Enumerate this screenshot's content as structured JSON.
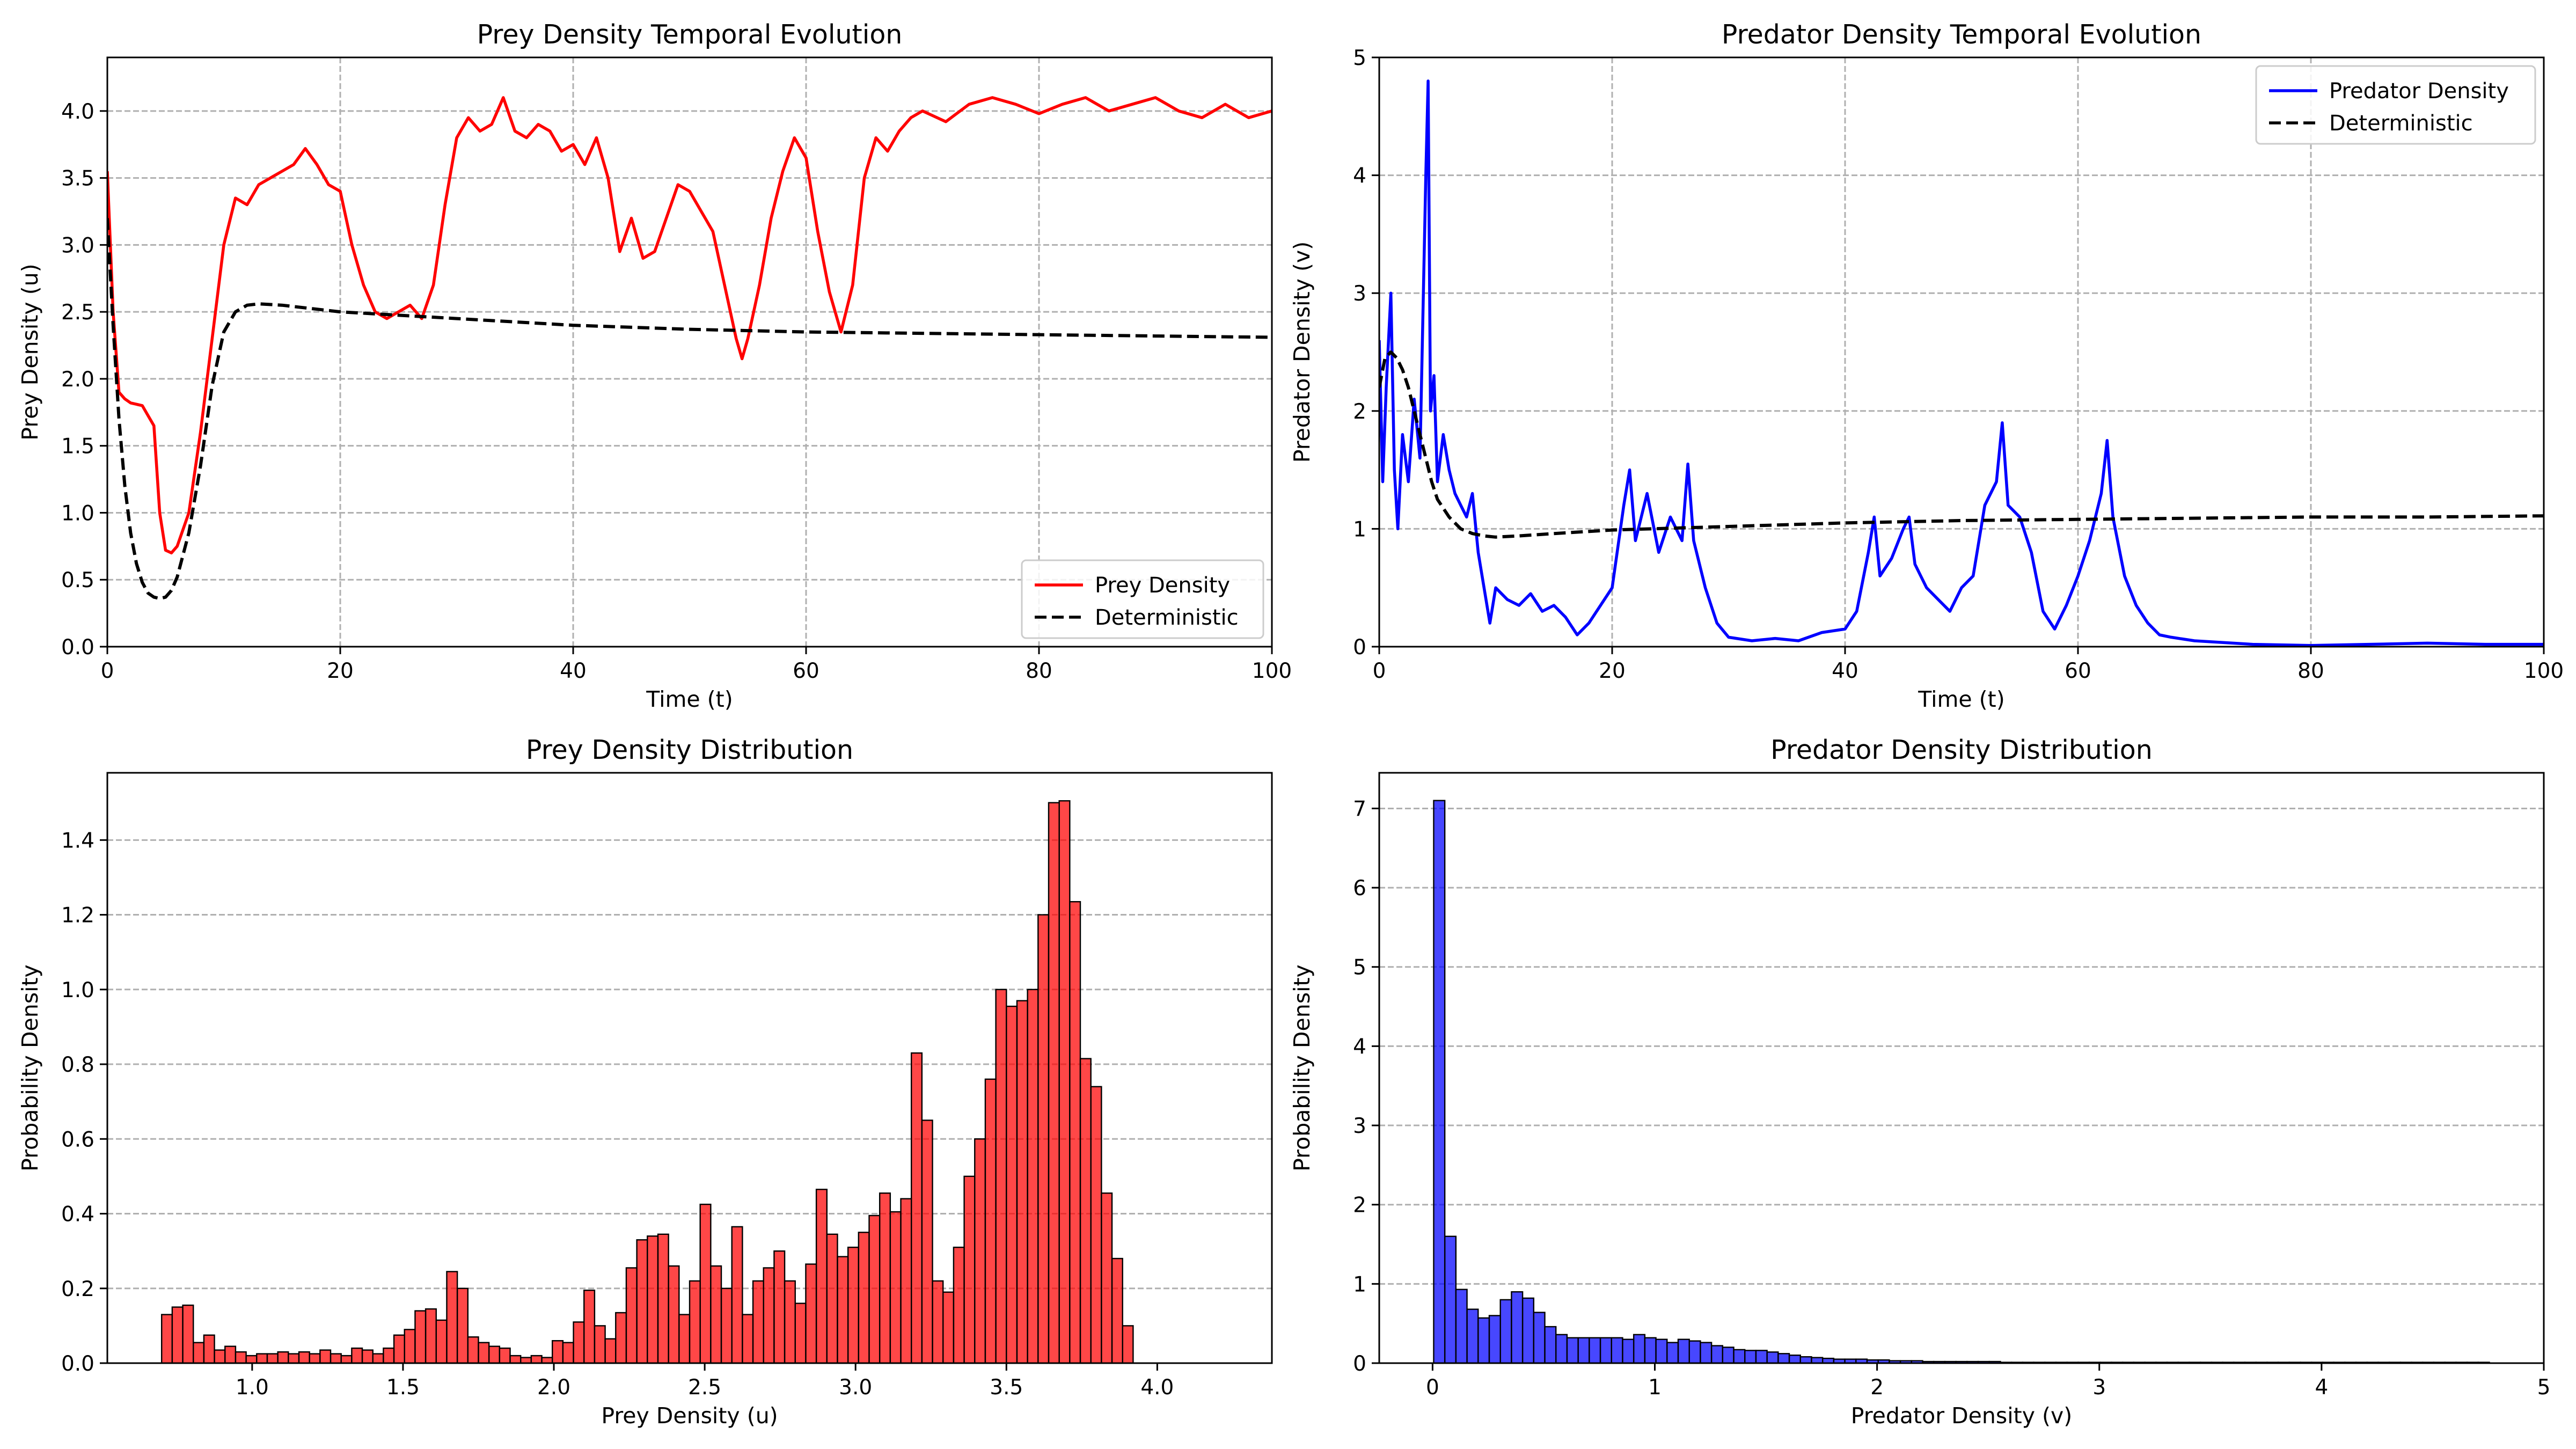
{
  "chart_data": [
    {
      "type": "line",
      "title": "Prey Density Temporal Evolution",
      "xlabel": "Time (t)",
      "ylabel": "Prey Density (u)",
      "xlim": [
        0,
        100
      ],
      "ylim": [
        0,
        4.4
      ],
      "xticks": [
        0,
        20,
        40,
        60,
        80,
        100
      ],
      "yticks": [
        0.0,
        0.5,
        1.0,
        1.5,
        2.0,
        2.5,
        3.0,
        3.5,
        4.0
      ],
      "grid": true,
      "legend_position": "lower-right",
      "series": [
        {
          "name": "Prey Density",
          "color": "#ff0000",
          "style": "solid",
          "x": [
            0,
            0.5,
            1,
            1.5,
            2,
            3,
            4,
            4.5,
            5,
            5.5,
            6,
            7,
            8,
            9,
            10,
            11,
            12,
            13,
            14,
            15,
            16,
            17,
            18,
            19,
            20,
            21,
            22,
            23,
            24,
            25,
            26,
            27,
            28,
            29,
            30,
            31,
            32,
            33,
            34,
            35,
            36,
            37,
            38,
            39,
            40,
            41,
            42,
            43,
            44,
            45,
            46,
            47,
            48,
            49,
            50,
            51,
            52,
            53,
            54,
            54.5,
            55,
            56,
            57,
            58,
            59,
            60,
            61,
            62,
            63,
            64,
            65,
            66,
            67,
            68,
            69,
            70,
            72,
            74,
            76,
            78,
            80,
            82,
            84,
            86,
            88,
            90,
            92,
            94,
            96,
            98,
            100
          ],
          "y": [
            3.55,
            2.5,
            1.9,
            1.85,
            1.82,
            1.8,
            1.65,
            1.0,
            0.72,
            0.7,
            0.75,
            1.0,
            1.6,
            2.3,
            3.0,
            3.35,
            3.3,
            3.45,
            3.5,
            3.55,
            3.6,
            3.72,
            3.6,
            3.45,
            3.4,
            3.0,
            2.7,
            2.5,
            2.45,
            2.5,
            2.55,
            2.45,
            2.7,
            3.3,
            3.8,
            3.95,
            3.85,
            3.9,
            4.1,
            3.85,
            3.8,
            3.9,
            3.85,
            3.7,
            3.75,
            3.6,
            3.8,
            3.5,
            2.95,
            3.2,
            2.9,
            2.95,
            3.2,
            3.45,
            3.4,
            3.25,
            3.1,
            2.7,
            2.3,
            2.15,
            2.3,
            2.7,
            3.2,
            3.55,
            3.8,
            3.65,
            3.1,
            2.65,
            2.35,
            2.7,
            3.5,
            3.8,
            3.7,
            3.85,
            3.95,
            4.0,
            3.92,
            4.05,
            4.1,
            4.05,
            3.98,
            4.05,
            4.1,
            4.0,
            4.05,
            4.1,
            4.0,
            3.95,
            4.05,
            3.95,
            4.0
          ]
        },
        {
          "name": "Deterministic",
          "color": "#000000",
          "style": "dashed",
          "x": [
            0,
            0.5,
            1,
            1.5,
            2,
            2.5,
            3,
            3.5,
            4,
            4.5,
            5,
            5.5,
            6,
            7,
            8,
            9,
            10,
            11,
            12,
            13,
            15,
            20,
            30,
            40,
            50,
            60,
            70,
            80,
            90,
            100
          ],
          "y": [
            3.2,
            2.4,
            1.7,
            1.2,
            0.85,
            0.62,
            0.48,
            0.4,
            0.37,
            0.36,
            0.37,
            0.42,
            0.52,
            0.85,
            1.35,
            1.95,
            2.35,
            2.5,
            2.55,
            2.56,
            2.55,
            2.5,
            2.45,
            2.4,
            2.37,
            2.35,
            2.34,
            2.33,
            2.32,
            2.31
          ]
        }
      ]
    },
    {
      "type": "line",
      "title": "Predator Density Temporal Evolution",
      "xlabel": "Time (t)",
      "ylabel": "Predator Density (v)",
      "xlim": [
        0,
        100
      ],
      "ylim": [
        0,
        5
      ],
      "xticks": [
        0,
        20,
        40,
        60,
        80,
        100
      ],
      "yticks": [
        0,
        1,
        2,
        3,
        4,
        5
      ],
      "grid": true,
      "legend_position": "upper-right",
      "series": [
        {
          "name": "Predator Density",
          "color": "#0000ff",
          "style": "solid",
          "x": [
            0,
            0.3,
            0.6,
            1,
            1.3,
            1.6,
            2,
            2.5,
            3,
            3.5,
            4,
            4.2,
            4.4,
            4.7,
            5,
            5.5,
            6,
            6.5,
            7,
            7.5,
            8,
            8.5,
            9,
            9.5,
            10,
            11,
            12,
            13,
            14,
            15,
            16,
            17,
            18,
            19,
            20,
            21,
            21.5,
            22,
            23,
            24,
            25,
            26,
            26.5,
            27,
            28,
            29,
            30,
            32,
            34,
            36,
            38,
            40,
            41,
            42,
            42.5,
            43,
            44,
            45,
            45.5,
            46,
            47,
            48,
            49,
            50,
            51,
            52,
            53,
            53.5,
            54,
            55,
            56,
            57,
            58,
            59,
            60,
            61,
            62,
            62.5,
            63,
            64,
            65,
            66,
            67,
            68,
            70,
            75,
            80,
            85,
            90,
            95,
            100
          ],
          "y": [
            2.6,
            1.4,
            2.2,
            3.0,
            1.5,
            1.0,
            1.8,
            1.4,
            2.1,
            1.6,
            4.0,
            4.8,
            2.0,
            2.3,
            1.4,
            1.8,
            1.5,
            1.3,
            1.2,
            1.1,
            1.3,
            0.8,
            0.5,
            0.2,
            0.5,
            0.4,
            0.35,
            0.45,
            0.3,
            0.35,
            0.25,
            0.1,
            0.2,
            0.35,
            0.5,
            1.2,
            1.5,
            0.9,
            1.3,
            0.8,
            1.1,
            0.9,
            1.55,
            0.9,
            0.5,
            0.2,
            0.08,
            0.05,
            0.07,
            0.05,
            0.12,
            0.15,
            0.3,
            0.8,
            1.1,
            0.6,
            0.75,
            1.0,
            1.1,
            0.7,
            0.5,
            0.4,
            0.3,
            0.5,
            0.6,
            1.2,
            1.4,
            1.9,
            1.2,
            1.1,
            0.8,
            0.3,
            0.15,
            0.35,
            0.6,
            0.9,
            1.3,
            1.75,
            1.1,
            0.6,
            0.35,
            0.2,
            0.1,
            0.08,
            0.05,
            0.02,
            0.01,
            0.02,
            0.03,
            0.02,
            0.02
          ]
        },
        {
          "name": "Deterministic",
          "color": "#000000",
          "style": "dashed",
          "x": [
            0,
            0.5,
            1,
            1.5,
            2,
            2.5,
            3,
            3.5,
            4,
            4.5,
            5,
            6,
            7,
            8,
            9,
            10,
            12,
            15,
            20,
            30,
            40,
            50,
            60,
            70,
            80,
            90,
            100
          ],
          "y": [
            2.2,
            2.45,
            2.5,
            2.45,
            2.35,
            2.2,
            2.0,
            1.8,
            1.6,
            1.4,
            1.25,
            1.1,
            1.0,
            0.96,
            0.94,
            0.93,
            0.94,
            0.96,
            0.99,
            1.02,
            1.05,
            1.07,
            1.08,
            1.09,
            1.1,
            1.1,
            1.11
          ]
        }
      ]
    },
    {
      "type": "bar",
      "title": "Prey Density Distribution",
      "xlabel": "Prey Density (u)",
      "ylabel": "Probability Density",
      "xlim": [
        0.52,
        4.38
      ],
      "ylim": [
        0,
        1.58
      ],
      "xticks": [
        1.0,
        1.5,
        2.0,
        2.5,
        3.0,
        3.5,
        4.0
      ],
      "yticks": [
        0.0,
        0.2,
        0.4,
        0.6,
        0.8,
        1.0,
        1.2,
        1.4
      ],
      "grid": true,
      "bar_color": "#ff0000",
      "bin_start": 0.7,
      "bin_width": 0.035,
      "values": [
        0.13,
        0.15,
        0.155,
        0.055,
        0.075,
        0.035,
        0.045,
        0.03,
        0.02,
        0.025,
        0.025,
        0.03,
        0.025,
        0.03,
        0.025,
        0.035,
        0.025,
        0.02,
        0.04,
        0.035,
        0.025,
        0.04,
        0.075,
        0.09,
        0.14,
        0.145,
        0.115,
        0.245,
        0.2,
        0.07,
        0.055,
        0.045,
        0.04,
        0.02,
        0.015,
        0.02,
        0.015,
        0.06,
        0.055,
        0.11,
        0.195,
        0.1,
        0.065,
        0.135,
        0.255,
        0.33,
        0.34,
        0.345,
        0.26,
        0.13,
        0.22,
        0.425,
        0.26,
        0.2,
        0.365,
        0.13,
        0.22,
        0.255,
        0.3,
        0.22,
        0.16,
        0.265,
        0.465,
        0.345,
        0.285,
        0.31,
        0.35,
        0.395,
        0.455,
        0.405,
        0.44,
        0.83,
        0.65,
        0.22,
        0.19,
        0.31,
        0.5,
        0.6,
        0.76,
        1.0,
        0.955,
        0.97,
        1.0,
        1.2,
        1.5,
        1.505,
        1.235,
        0.815,
        0.74,
        0.455,
        0.28,
        0.1
      ]
    },
    {
      "type": "bar",
      "title": "Predator Density Distribution",
      "xlabel": "Predator Density (v)",
      "ylabel": "Probability Density",
      "xlim": [
        -0.24,
        5.0
      ],
      "ylim": [
        0,
        7.45
      ],
      "xticks": [
        0,
        1,
        2,
        3,
        4,
        5
      ],
      "yticks": [
        0,
        1,
        2,
        3,
        4,
        5,
        6,
        7
      ],
      "grid": true,
      "bar_color": "#0000ff",
      "bin_start": 0.005,
      "bin_width": 0.05,
      "values": [
        7.1,
        1.6,
        0.93,
        0.68,
        0.57,
        0.6,
        0.8,
        0.9,
        0.82,
        0.64,
        0.46,
        0.36,
        0.32,
        0.32,
        0.32,
        0.32,
        0.32,
        0.3,
        0.36,
        0.32,
        0.3,
        0.26,
        0.3,
        0.28,
        0.26,
        0.22,
        0.2,
        0.17,
        0.16,
        0.16,
        0.14,
        0.12,
        0.1,
        0.08,
        0.07,
        0.06,
        0.05,
        0.05,
        0.05,
        0.04,
        0.04,
        0.03,
        0.03,
        0.03,
        0.02,
        0.02,
        0.02,
        0.02,
        0.02,
        0.02,
        0.02,
        0.01,
        0.01,
        0.01,
        0.01,
        0.01,
        0.01,
        0.01,
        0.01,
        0.01,
        0.01,
        0.01,
        0.01,
        0.01,
        0.01,
        0.01,
        0.01,
        0.01,
        0.01,
        0.01,
        0.01,
        0.01,
        0.01,
        0.01,
        0.01,
        0.01,
        0.01,
        0.01,
        0.01,
        0.01,
        0.01,
        0.01,
        0.01,
        0.01,
        0.01,
        0.01,
        0.01,
        0.01,
        0.01,
        0.01,
        0.01,
        0.01,
        0.01,
        0.01,
        0.01
      ]
    }
  ]
}
